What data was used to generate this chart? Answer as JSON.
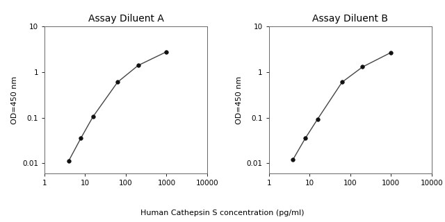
{
  "panel_A": {
    "title": "Assay Diluent A",
    "x": [
      3.9,
      7.8,
      15.6,
      62.5,
      200,
      1000
    ],
    "y": [
      0.011,
      0.035,
      0.105,
      0.6,
      1.4,
      2.8
    ],
    "xlabel": "Human Cathepsin S concentration (pg/ml)",
    "ylabel": "OD=450 nm",
    "xlim": [
      1,
      10000
    ],
    "ylim": [
      0.006,
      10
    ]
  },
  "panel_B": {
    "title": "Assay Diluent B",
    "x": [
      3.9,
      7.8,
      15.6,
      62.5,
      200,
      1000
    ],
    "y": [
      0.012,
      0.035,
      0.092,
      0.6,
      1.3,
      2.7
    ],
    "xlabel": "Human Cathepsin S concentration (pg/ml)",
    "ylabel": "OD=450 nm",
    "xlim": [
      1,
      10000
    ],
    "ylim": [
      0.006,
      10
    ]
  },
  "line_color": "#444444",
  "marker_color": "#111111",
  "marker_size": 4,
  "line_width": 1.0,
  "title_fontsize": 10,
  "label_fontsize": 8,
  "tick_fontsize": 7.5,
  "background_color": "#ffffff",
  "xticks": [
    1,
    10,
    100,
    1000,
    10000
  ],
  "xtick_labels": [
    "1",
    "10",
    "100",
    "1000",
    "10000"
  ],
  "yticks": [
    0.01,
    0.1,
    1,
    10
  ],
  "ytick_labels": [
    "0.01",
    "0.1",
    "1",
    "10"
  ]
}
